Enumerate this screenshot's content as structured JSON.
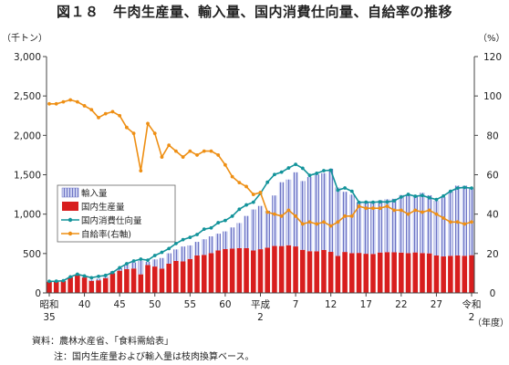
{
  "title": "図１８　牛肉生産量、輸入量、国内消費仕向量、自給率の推移",
  "y_left_unit": "（千トン）",
  "y_right_unit": "（%）",
  "x_unit": "（年度）",
  "notes": [
    "資料：農林水産省、「食料需給表」",
    "注：国内生産量および輸入量は枝肉換算ベース。"
  ],
  "colors": {
    "domestic": "#d81e1e",
    "imports_fill": "#c9cff0",
    "imports_hatch": "#6e74c4",
    "consumption": "#12939a",
    "self_sufficiency": "#ee8f14"
  },
  "chart_data": {
    "type": "bar+line",
    "x_years": [
      1960,
      1961,
      1962,
      1963,
      1964,
      1965,
      1966,
      1967,
      1968,
      1969,
      1970,
      1971,
      1972,
      1973,
      1974,
      1975,
      1976,
      1977,
      1978,
      1979,
      1980,
      1981,
      1982,
      1983,
      1984,
      1985,
      1986,
      1987,
      1988,
      1989,
      1990,
      1991,
      1992,
      1993,
      1994,
      1995,
      1996,
      1997,
      1998,
      1999,
      2000,
      2001,
      2002,
      2003,
      2004,
      2005,
      2006,
      2007,
      2008,
      2009,
      2010,
      2011,
      2012,
      2013,
      2014,
      2015,
      2016,
      2017,
      2018,
      2019,
      2020
    ],
    "x_tick_labels": [
      {
        "year": 1960,
        "lines": [
          "昭和",
          "35"
        ]
      },
      {
        "year": 1965,
        "lines": [
          "40"
        ]
      },
      {
        "year": 1970,
        "lines": [
          "45"
        ]
      },
      {
        "year": 1975,
        "lines": [
          "50"
        ]
      },
      {
        "year": 1980,
        "lines": [
          "55"
        ]
      },
      {
        "year": 1985,
        "lines": [
          "60"
        ]
      },
      {
        "year": 1990,
        "lines": [
          "平成",
          "2"
        ]
      },
      {
        "year": 1995,
        "lines": [
          "7"
        ]
      },
      {
        "year": 2000,
        "lines": [
          "12"
        ]
      },
      {
        "year": 2005,
        "lines": [
          "17"
        ]
      },
      {
        "year": 2010,
        "lines": [
          "22"
        ]
      },
      {
        "year": 2015,
        "lines": [
          "27"
        ]
      },
      {
        "year": 2020,
        "lines": [
          "令和",
          "2"
        ]
      }
    ],
    "y_left": {
      "min": 0,
      "max": 3000,
      "ticks": [
        "0",
        "500",
        "1,000",
        "1,500",
        "2,000",
        "2,500",
        "3,000"
      ]
    },
    "y_right": {
      "min": 0,
      "max": 120,
      "ticks": [
        "0",
        "20",
        "40",
        "60",
        "80",
        "100",
        "120"
      ]
    },
    "legend": [
      "輸入量",
      "国内生産量",
      "国内消費仕向量",
      "自給率(右軸)"
    ],
    "series": [
      {
        "name": "国内生産量",
        "type": "bar",
        "values": [
          141,
          141,
          153,
          198,
          229,
          196,
          153,
          160,
          188,
          250,
          282,
          302,
          310,
          236,
          354,
          335,
          309,
          371,
          406,
          400,
          431,
          476,
          483,
          505,
          539,
          556,
          563,
          568,
          569,
          539,
          555,
          575,
          596,
          595,
          605,
          590,
          547,
          530,
          529,
          545,
          521,
          470,
          520,
          505,
          508,
          497,
          495,
          513,
          518,
          516,
          512,
          505,
          514,
          506,
          502,
          475,
          463,
          471,
          476,
          471,
          479
        ]
      },
      {
        "name": "輸入量",
        "type": "bar",
        "values": [
          6,
          6,
          4,
          5,
          6,
          9,
          14,
          20,
          19,
          24,
          33,
          62,
          77,
          170,
          40,
          91,
          134,
          132,
          146,
          189,
          172,
          172,
          198,
          213,
          213,
          225,
          268,
          319,
          408,
          520,
          549,
          467,
          641,
          810,
          834,
          941,
          873,
          941,
          974,
          975,
          1055,
          868,
          763,
          743,
          643,
          654,
          667,
          662,
          671,
          679,
          731,
          737,
          722,
          765,
          738,
          696,
          752,
          817,
          886,
          890,
          845
        ]
      },
      {
        "name": "国内消費仕向量",
        "type": "line",
        "values": [
          147,
          149,
          155,
          204,
          237,
          215,
          193,
          210,
          222,
          259,
          320,
          370,
          405,
          428,
          415,
          475,
          515,
          563,
          627,
          676,
          705,
          741,
          809,
          825,
          891,
          919,
          974,
          1062,
          1117,
          1151,
          1263,
          1405,
          1503,
          1533,
          1586,
          1632,
          1582,
          1492,
          1518,
          1552,
          1557,
          1304,
          1332,
          1290,
          1150,
          1152,
          1151,
          1156,
          1155,
          1169,
          1217,
          1250,
          1227,
          1237,
          1208,
          1185,
          1231,
          1290,
          1331,
          1339,
          1330
        ]
      },
      {
        "name": "自給率(右軸)",
        "type": "line",
        "axis": "right",
        "values": [
          96,
          96,
          97,
          98,
          97,
          95,
          93,
          89,
          91,
          92,
          90,
          84,
          81,
          62,
          86,
          81,
          69,
          75,
          72,
          69,
          72,
          70,
          72,
          72,
          70,
          65,
          59,
          56,
          54,
          50,
          51,
          41,
          40,
          39,
          42,
          39,
          35,
          36,
          35,
          36,
          34,
          36,
          39,
          39,
          44,
          43,
          43,
          43,
          44,
          42,
          42,
          40,
          42,
          41,
          42,
          40,
          38,
          36,
          36,
          35,
          36
        ]
      }
    ],
    "grid": false
  }
}
